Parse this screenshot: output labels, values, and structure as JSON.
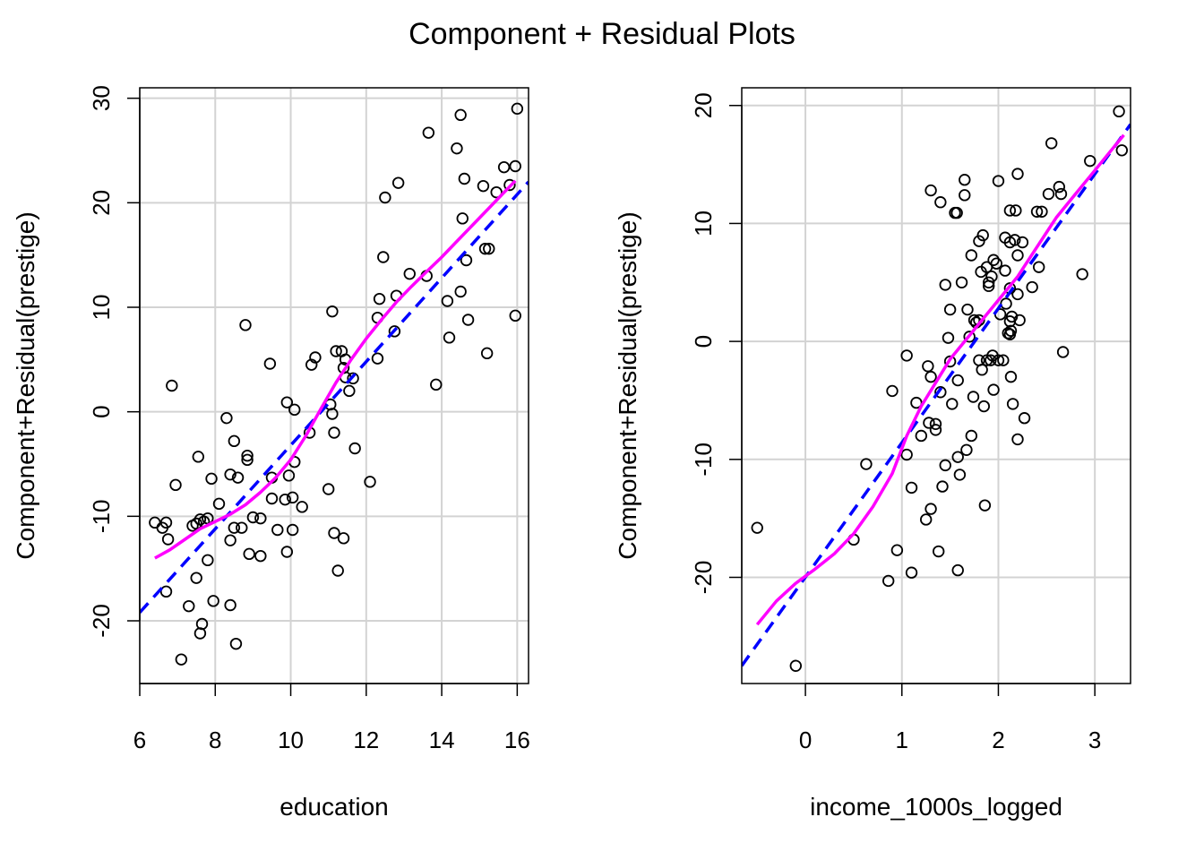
{
  "figure": {
    "title": "Component + Residual Plots"
  },
  "colors": {
    "grid": "#d3d3d3",
    "points": "#000000",
    "linear_fit": "#0000ff",
    "smooth": "#ff00ff",
    "axes": "#000000"
  },
  "chart_data": [
    {
      "type": "scatter",
      "xlabel": "education",
      "ylabel": "Component+Residual(prestige)",
      "xlim": [
        6.0,
        16.3
      ],
      "ylim": [
        -26,
        31
      ],
      "x_ticks": [
        6,
        8,
        10,
        12,
        14,
        16
      ],
      "y_ticks": [
        -20,
        -10,
        0,
        10,
        20,
        30
      ],
      "grid": true,
      "points": [
        [
          6.4,
          -10.6
        ],
        [
          6.6,
          -11.1
        ],
        [
          6.7,
          -10.6
        ],
        [
          6.75,
          -12.2
        ],
        [
          6.85,
          2.5
        ],
        [
          6.7,
          -17.2
        ],
        [
          6.95,
          -7.0
        ],
        [
          7.1,
          -23.7
        ],
        [
          7.3,
          -18.6
        ],
        [
          7.4,
          -10.9
        ],
        [
          7.5,
          -10.7
        ],
        [
          7.55,
          -4.3
        ],
        [
          7.5,
          -15.9
        ],
        [
          7.6,
          -10.3
        ],
        [
          7.6,
          -21.2
        ],
        [
          7.65,
          -20.3
        ],
        [
          7.7,
          -10.5
        ],
        [
          7.8,
          -10.2
        ],
        [
          7.8,
          -14.2
        ],
        [
          7.9,
          -6.4
        ],
        [
          7.95,
          -18.1
        ],
        [
          8.1,
          -8.8
        ],
        [
          8.3,
          -0.6
        ],
        [
          8.4,
          -6.0
        ],
        [
          8.4,
          -12.3
        ],
        [
          8.4,
          -18.5
        ],
        [
          8.5,
          -11.1
        ],
        [
          8.5,
          -2.8
        ],
        [
          8.55,
          -22.2
        ],
        [
          8.6,
          -6.3
        ],
        [
          8.7,
          -11.1
        ],
        [
          8.8,
          8.3
        ],
        [
          8.85,
          -4.6
        ],
        [
          8.85,
          -4.2
        ],
        [
          8.9,
          -13.6
        ],
        [
          9.0,
          -10.1
        ],
        [
          9.2,
          -10.2
        ],
        [
          9.2,
          -13.8
        ],
        [
          9.45,
          4.6
        ],
        [
          9.5,
          -8.3
        ],
        [
          9.5,
          -6.3
        ],
        [
          9.65,
          -11.3
        ],
        [
          9.85,
          -8.4
        ],
        [
          9.9,
          -13.4
        ],
        [
          9.9,
          0.9
        ],
        [
          9.95,
          -6.1
        ],
        [
          10.05,
          -11.3
        ],
        [
          10.05,
          -8.2
        ],
        [
          10.1,
          -4.8
        ],
        [
          10.1,
          0.2
        ],
        [
          10.3,
          -9.1
        ],
        [
          10.5,
          -2.0
        ],
        [
          10.55,
          4.5
        ],
        [
          10.65,
          5.2
        ],
        [
          11.0,
          -7.4
        ],
        [
          11.05,
          0.7
        ],
        [
          11.1,
          -0.2
        ],
        [
          11.1,
          9.6
        ],
        [
          11.15,
          -2.0
        ],
        [
          11.15,
          -11.6
        ],
        [
          11.2,
          5.8
        ],
        [
          11.25,
          -15.2
        ],
        [
          11.35,
          5.8
        ],
        [
          11.4,
          -12.1
        ],
        [
          11.4,
          4.2
        ],
        [
          11.45,
          5.0
        ],
        [
          11.45,
          3.3
        ],
        [
          11.55,
          2.0
        ],
        [
          11.65,
          3.2
        ],
        [
          11.7,
          -3.5
        ],
        [
          12.1,
          -6.7
        ],
        [
          12.3,
          5.1
        ],
        [
          12.3,
          9.0
        ],
        [
          12.35,
          10.8
        ],
        [
          12.45,
          14.8
        ],
        [
          12.5,
          20.5
        ],
        [
          12.75,
          7.7
        ],
        [
          12.8,
          11.1
        ],
        [
          12.85,
          21.9
        ],
        [
          13.15,
          13.2
        ],
        [
          13.6,
          13.0
        ],
        [
          13.65,
          26.7
        ],
        [
          13.85,
          2.6
        ],
        [
          14.15,
          10.6
        ],
        [
          14.2,
          7.1
        ],
        [
          14.4,
          25.2
        ],
        [
          14.5,
          11.5
        ],
        [
          14.5,
          28.4
        ],
        [
          14.55,
          18.5
        ],
        [
          14.6,
          22.3
        ],
        [
          14.65,
          14.5
        ],
        [
          14.7,
          8.8
        ],
        [
          15.1,
          21.6
        ],
        [
          15.15,
          15.6
        ],
        [
          15.2,
          5.6
        ],
        [
          15.25,
          15.6
        ],
        [
          15.45,
          21.0
        ],
        [
          15.65,
          23.4
        ],
        [
          15.8,
          21.7
        ],
        [
          15.95,
          23.5
        ],
        [
          16.0,
          29.0
        ],
        [
          15.95,
          9.2
        ]
      ],
      "series": [
        {
          "kind": "linear",
          "x": [
            6.0,
            16.3
          ],
          "y": [
            -19.2,
            22.0
          ]
        },
        {
          "kind": "smooth",
          "x": [
            6.4,
            6.8,
            7.2,
            7.6,
            8.0,
            8.4,
            8.8,
            9.2,
            9.6,
            10.0,
            10.4,
            10.8,
            11.2,
            11.6,
            12.0,
            12.4,
            12.8,
            13.2,
            13.6,
            14.0,
            14.4,
            14.8,
            15.2,
            15.6,
            15.95
          ],
          "y": [
            -14.0,
            -13.2,
            -12.2,
            -11.2,
            -10.5,
            -9.8,
            -8.9,
            -7.7,
            -6.3,
            -4.6,
            -2.3,
            0.3,
            2.8,
            5.0,
            7.0,
            8.8,
            10.5,
            12.0,
            13.4,
            14.8,
            16.3,
            17.8,
            19.3,
            20.8,
            22.1
          ]
        }
      ]
    },
    {
      "type": "scatter",
      "xlabel": "income_1000s_logged",
      "ylabel": "Component+Residual(prestige)",
      "xlim": [
        -0.66,
        3.37
      ],
      "ylim": [
        -29,
        21.5
      ],
      "x_ticks": [
        0,
        1,
        2,
        3
      ],
      "y_ticks": [
        -20,
        -10,
        0,
        10,
        20
      ],
      "grid": true,
      "points": [
        [
          -0.5,
          -15.8
        ],
        [
          -0.1,
          -27.5
        ],
        [
          0.5,
          -16.8
        ],
        [
          0.63,
          -10.4
        ],
        [
          0.86,
          -20.3
        ],
        [
          0.95,
          -17.7
        ],
        [
          1.05,
          -1.2
        ],
        [
          1.05,
          -9.6
        ],
        [
          1.1,
          -19.6
        ],
        [
          1.1,
          -12.4
        ],
        [
          1.15,
          -5.2
        ],
        [
          0.9,
          -4.2
        ],
        [
          1.2,
          -8.0
        ],
        [
          1.25,
          -15.1
        ],
        [
          1.27,
          -2.1
        ],
        [
          1.28,
          -6.9
        ],
        [
          1.3,
          -14.2
        ],
        [
          1.3,
          -3.0
        ],
        [
          1.35,
          -7.0
        ],
        [
          1.35,
          -7.5
        ],
        [
          1.3,
          12.8
        ],
        [
          1.38,
          -17.8
        ],
        [
          1.4,
          11.8
        ],
        [
          1.4,
          -4.3
        ],
        [
          1.42,
          -12.3
        ],
        [
          1.45,
          -10.5
        ],
        [
          1.45,
          4.8
        ],
        [
          1.48,
          0.3
        ],
        [
          1.5,
          2.7
        ],
        [
          1.5,
          -1.7
        ],
        [
          1.52,
          -5.3
        ],
        [
          1.55,
          10.9
        ],
        [
          1.57,
          10.9
        ],
        [
          1.58,
          -3.3
        ],
        [
          1.58,
          -9.8
        ],
        [
          1.58,
          -19.4
        ],
        [
          1.6,
          -11.3
        ],
        [
          1.62,
          5.0
        ],
        [
          1.65,
          12.4
        ],
        [
          1.65,
          13.7
        ],
        [
          1.67,
          -9.2
        ],
        [
          1.68,
          2.7
        ],
        [
          1.7,
          0.4
        ],
        [
          1.72,
          7.3
        ],
        [
          1.72,
          -8.0
        ],
        [
          1.74,
          -4.7
        ],
        [
          1.75,
          1.8
        ],
        [
          1.77,
          1.6
        ],
        [
          1.8,
          -1.6
        ],
        [
          1.8,
          1.8
        ],
        [
          1.8,
          8.5
        ],
        [
          1.82,
          5.9
        ],
        [
          1.83,
          -2.4
        ],
        [
          1.84,
          9.0
        ],
        [
          1.85,
          -5.5
        ],
        [
          1.86,
          -13.9
        ],
        [
          1.88,
          -1.6
        ],
        [
          1.88,
          6.3
        ],
        [
          1.9,
          4.7
        ],
        [
          1.9,
          5.0
        ],
        [
          1.92,
          -1.6
        ],
        [
          1.93,
          5.5
        ],
        [
          1.94,
          -1.2
        ],
        [
          1.95,
          -4.1
        ],
        [
          1.95,
          6.9
        ],
        [
          1.98,
          6.6
        ],
        [
          2.0,
          13.6
        ],
        [
          2.0,
          -1.6
        ],
        [
          2.02,
          2.3
        ],
        [
          2.05,
          -1.6
        ],
        [
          2.07,
          8.8
        ],
        [
          2.07,
          6.0
        ],
        [
          2.08,
          3.2
        ],
        [
          2.1,
          0.7
        ],
        [
          2.12,
          1.7
        ],
        [
          2.12,
          0.6
        ],
        [
          2.12,
          8.4
        ],
        [
          2.12,
          11.1
        ],
        [
          2.12,
          4.5
        ],
        [
          2.13,
          0.9
        ],
        [
          2.13,
          -3.0
        ],
        [
          2.14,
          2.1
        ],
        [
          2.15,
          -5.3
        ],
        [
          2.17,
          8.6
        ],
        [
          2.18,
          11.1
        ],
        [
          2.2,
          4.0
        ],
        [
          2.2,
          7.3
        ],
        [
          2.2,
          14.2
        ],
        [
          2.2,
          -8.3
        ],
        [
          2.22,
          1.8
        ],
        [
          2.25,
          8.4
        ],
        [
          2.27,
          -6.5
        ],
        [
          2.35,
          4.6
        ],
        [
          2.4,
          11.0
        ],
        [
          2.42,
          6.3
        ],
        [
          2.45,
          11.0
        ],
        [
          2.52,
          12.5
        ],
        [
          2.55,
          16.8
        ],
        [
          2.63,
          13.1
        ],
        [
          2.65,
          12.5
        ],
        [
          2.67,
          -0.9
        ],
        [
          2.87,
          5.7
        ],
        [
          2.95,
          15.3
        ],
        [
          3.25,
          19.5
        ],
        [
          3.28,
          16.2
        ]
      ],
      "series": [
        {
          "kind": "linear",
          "x": [
            -0.66,
            3.37
          ],
          "y": [
            -27.5,
            18.4
          ]
        },
        {
          "kind": "smooth",
          "x": [
            -0.5,
            -0.3,
            -0.1,
            0.1,
            0.3,
            0.5,
            0.7,
            0.9,
            1.05,
            1.2,
            1.35,
            1.5,
            1.65,
            1.8,
            2.0,
            2.2,
            2.4,
            2.6,
            2.8,
            3.0,
            3.2,
            3.3
          ],
          "y": [
            -24.0,
            -22.0,
            -20.5,
            -19.3,
            -18.0,
            -16.3,
            -14.0,
            -11.2,
            -8.0,
            -5.5,
            -3.5,
            -1.5,
            0.0,
            1.5,
            3.5,
            5.5,
            8.0,
            10.5,
            12.5,
            14.5,
            16.5,
            17.5
          ]
        }
      ]
    }
  ]
}
